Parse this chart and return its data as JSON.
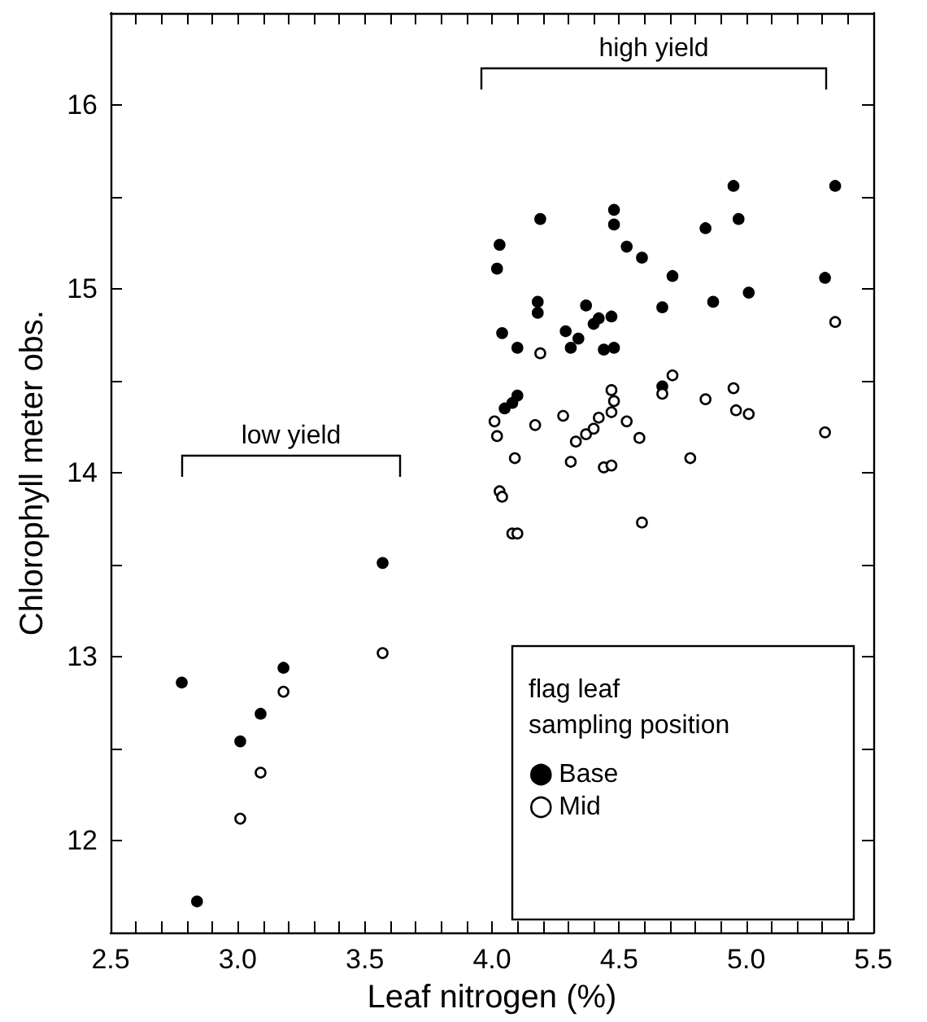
{
  "chart_data": {
    "type": "scatter",
    "xlabel": "Leaf nitrogen (%)",
    "ylabel": "Chlorophyll meter obs.",
    "legend_title": "flag leaf\nsampling position",
    "legend": "bottom right",
    "marker": "circle",
    "grid": false,
    "xlim": [
      2.5,
      5.5
    ],
    "xticks": [
      2.5,
      {
        "value": 2.6,
        "label": null
      },
      {
        "value": 2.7,
        "label": null
      },
      {
        "value": 2.8,
        "label": null
      },
      {
        "value": 2.9,
        "label": null
      },
      {
        "value": 3,
        "label": "3.0"
      },
      {
        "value": 3.1,
        "label": null
      },
      {
        "value": 3.2,
        "label": null
      },
      {
        "value": 3.3,
        "label": null
      },
      {
        "value": 3.4,
        "label": null
      },
      3.5,
      {
        "value": 3.6,
        "label": null
      },
      {
        "value": 3.7,
        "label": null
      },
      {
        "value": 3.8,
        "label": null
      },
      {
        "value": 3.9,
        "label": null
      },
      {
        "value": 4,
        "label": "4.0"
      },
      {
        "value": 4.1,
        "label": null
      },
      {
        "value": 4.2,
        "label": null
      },
      {
        "value": 4.3,
        "label": null
      },
      {
        "value": 4.4,
        "label": null
      },
      4.5,
      {
        "value": 4.6,
        "label": null
      },
      {
        "value": 4.7,
        "label": null
      },
      {
        "value": 4.8,
        "label": null
      },
      {
        "value": 4.9,
        "label": null
      },
      {
        "value": 5,
        "label": "5.0"
      },
      {
        "value": 5.1,
        "label": null
      },
      {
        "value": 5.2,
        "label": null
      },
      {
        "value": 5.3,
        "label": null
      },
      {
        "value": 5.4,
        "label": null
      },
      5.5
    ],
    "ylim": [
      11.5,
      16.5
    ],
    "yticks": [
      12,
      {
        "value": 12.5,
        "label": null
      },
      13,
      {
        "value": 13.5,
        "label": null
      },
      14,
      {
        "value": 14.5,
        "label": null
      },
      15,
      {
        "value": 15.5,
        "label": null
      },
      16
    ],
    "annotations": [
      "low yield",
      "high yield"
    ],
    "series": [
      {
        "name": "Base",
        "color": "#000000",
        "x": [
          2.78,
          2.84,
          3.01,
          3.09,
          3.18,
          3.57,
          4.18,
          4.18,
          4.04,
          4.1,
          4.37,
          4.42,
          4.4,
          4.47,
          4.29,
          4.34,
          4.31,
          4.44,
          4.48,
          4.05,
          4.08,
          4.1,
          4.19,
          4.03,
          4.02,
          4.48,
          4.48,
          4.53,
          4.59,
          4.95,
          5.35,
          4.84,
          4.97,
          4.71,
          5.31,
          4.67,
          4.87,
          5.01,
          4.67
        ],
        "values": [
          12.86,
          11.67,
          12.54,
          12.69,
          12.94,
          13.51,
          14.93,
          14.87,
          14.76,
          14.68,
          14.91,
          14.84,
          14.81,
          14.85,
          14.77,
          14.73,
          14.68,
          14.67,
          14.68,
          14.35,
          14.38,
          14.42,
          15.38,
          15.24,
          15.11,
          15.43,
          15.35,
          15.23,
          15.17,
          15.56,
          15.56,
          15.33,
          15.38,
          15.07,
          15.06,
          14.9,
          14.93,
          14.98,
          14.47
        ]
      },
      {
        "name": "Mid",
        "color": "#ffffff",
        "x": [
          3.01,
          3.09,
          3.18,
          3.57,
          4.19,
          4.01,
          4.02,
          4.17,
          4.28,
          4.09,
          4.31,
          4.33,
          4.37,
          4.4,
          4.42,
          4.47,
          4.48,
          4.47,
          4.53,
          4.58,
          4.44,
          4.47,
          4.03,
          4.04,
          4.08,
          4.1,
          5.35,
          4.71,
          4.67,
          4.84,
          4.95,
          4.96,
          5.01,
          5.31,
          4.78,
          4.59
        ],
        "values": [
          12.12,
          12.37,
          12.81,
          13.02,
          14.65,
          14.28,
          14.2,
          14.26,
          14.31,
          14.08,
          14.06,
          14.17,
          14.21,
          14.24,
          14.3,
          14.33,
          14.39,
          14.45,
          14.28,
          14.19,
          14.03,
          14.04,
          13.9,
          13.87,
          13.67,
          13.67,
          14.82,
          14.53,
          14.43,
          14.4,
          14.46,
          14.34,
          14.32,
          14.22,
          14.08,
          13.73
        ]
      }
    ]
  }
}
